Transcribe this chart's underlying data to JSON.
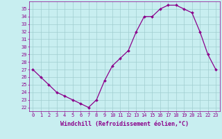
{
  "x": [
    0,
    1,
    2,
    3,
    4,
    5,
    6,
    7,
    8,
    9,
    10,
    11,
    12,
    13,
    14,
    15,
    16,
    17,
    18,
    19,
    20,
    21,
    22,
    23
  ],
  "y": [
    27,
    26,
    25,
    24,
    23.5,
    23,
    22.5,
    22,
    23,
    25.5,
    27.5,
    28.5,
    29.5,
    32,
    34,
    34,
    35,
    35.5,
    35.5,
    35,
    34.5,
    32,
    29,
    27
  ],
  "line_color": "#8b008b",
  "marker": "D",
  "marker_size": 2.0,
  "bg_color": "#c8eef0",
  "grid_color": "#a0cdd0",
  "ylabel_values": [
    22,
    23,
    24,
    25,
    26,
    27,
    28,
    29,
    30,
    31,
    32,
    33,
    34,
    35
  ],
  "ylim": [
    21.5,
    36.0
  ],
  "xlim": [
    -0.5,
    23.5
  ],
  "xlabel": "Windchill (Refroidissement éolien,°C)",
  "xtick_labels": [
    "0",
    "1",
    "2",
    "3",
    "4",
    "5",
    "6",
    "7",
    "8",
    "9",
    "10",
    "11",
    "12",
    "13",
    "14",
    "15",
    "16",
    "17",
    "18",
    "19",
    "20",
    "21",
    "22",
    "23"
  ],
  "axis_label_color": "#8b008b",
  "tick_color": "#8b008b",
  "tick_fontsize": 5.0,
  "xlabel_fontsize": 6.0,
  "linewidth": 0.9,
  "spine_color": "#8b008b"
}
